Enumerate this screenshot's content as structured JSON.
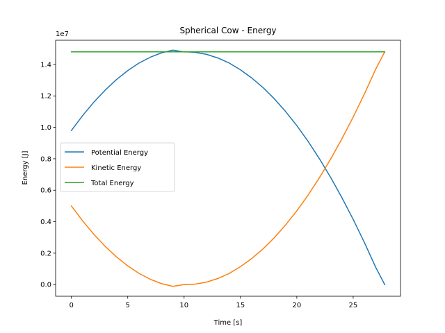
{
  "chart_data": {
    "type": "line",
    "title": "Spherical Cow - Energy",
    "xlabel": "Time [s]",
    "ylabel": "Energy [J]",
    "y_offset_text": "1e7",
    "y_scale": 10000000,
    "xlim": [
      -1.4,
      29.2
    ],
    "ylim": [
      -740000,
      15540000
    ],
    "x_ticks": [
      0,
      5,
      10,
      15,
      20,
      25
    ],
    "x_tick_labels": [
      "0",
      "5",
      "10",
      "15",
      "20",
      "25"
    ],
    "y_ticks": [
      0,
      2000000,
      4000000,
      6000000,
      8000000,
      10000000,
      12000000,
      14000000
    ],
    "y_tick_labels": [
      "0.0",
      "0.2",
      "0.4",
      "0.6",
      "0.8",
      "1.0",
      "1.2",
      "1.4"
    ],
    "grid": false,
    "legend_position": "center-left",
    "x": [
      0,
      1,
      2,
      3,
      4,
      5,
      6,
      7,
      8,
      9,
      10,
      10.25,
      11,
      12,
      13,
      14,
      15,
      16,
      17,
      18,
      19,
      20,
      21,
      22,
      23,
      24,
      25,
      26,
      27,
      27.8
    ],
    "series": [
      {
        "name": "Potential Energy",
        "color": "#1f77b4",
        "values": [
          9800000,
          10750000,
          11610000,
          12370000,
          13040000,
          13610000,
          14090000,
          14460000,
          14740000,
          14910000,
          14795000,
          14800000,
          14770000,
          14640000,
          14410000,
          14090000,
          13660000,
          13140000,
          12530000,
          11820000,
          11010000,
          10110000,
          9110000,
          8010000,
          6820000,
          5530000,
          4150000,
          2670000,
          1100000,
          0
        ]
      },
      {
        "name": "Kinetic Energy",
        "color": "#ff7f0e",
        "values": [
          5000000,
          4050000,
          3190000,
          2430000,
          1760000,
          1190000,
          710000,
          340000,
          60000,
          -110000,
          5000,
          0,
          30000,
          160000,
          390000,
          710000,
          1140000,
          1660000,
          2270000,
          2980000,
          3790000,
          4690000,
          5690000,
          6790000,
          7980000,
          9270000,
          10650000,
          12130000,
          13700000,
          14800000
        ]
      },
      {
        "name": "Total Energy",
        "color": "#2ca02c",
        "values": [
          14800000,
          14800000,
          14800000,
          14800000,
          14800000,
          14800000,
          14800000,
          14800000,
          14800000,
          14800000,
          14800000,
          14800000,
          14800000,
          14800000,
          14800000,
          14800000,
          14800000,
          14800000,
          14800000,
          14800000,
          14800000,
          14800000,
          14800000,
          14800000,
          14800000,
          14800000,
          14800000,
          14800000,
          14800000,
          14800000
        ]
      }
    ]
  }
}
